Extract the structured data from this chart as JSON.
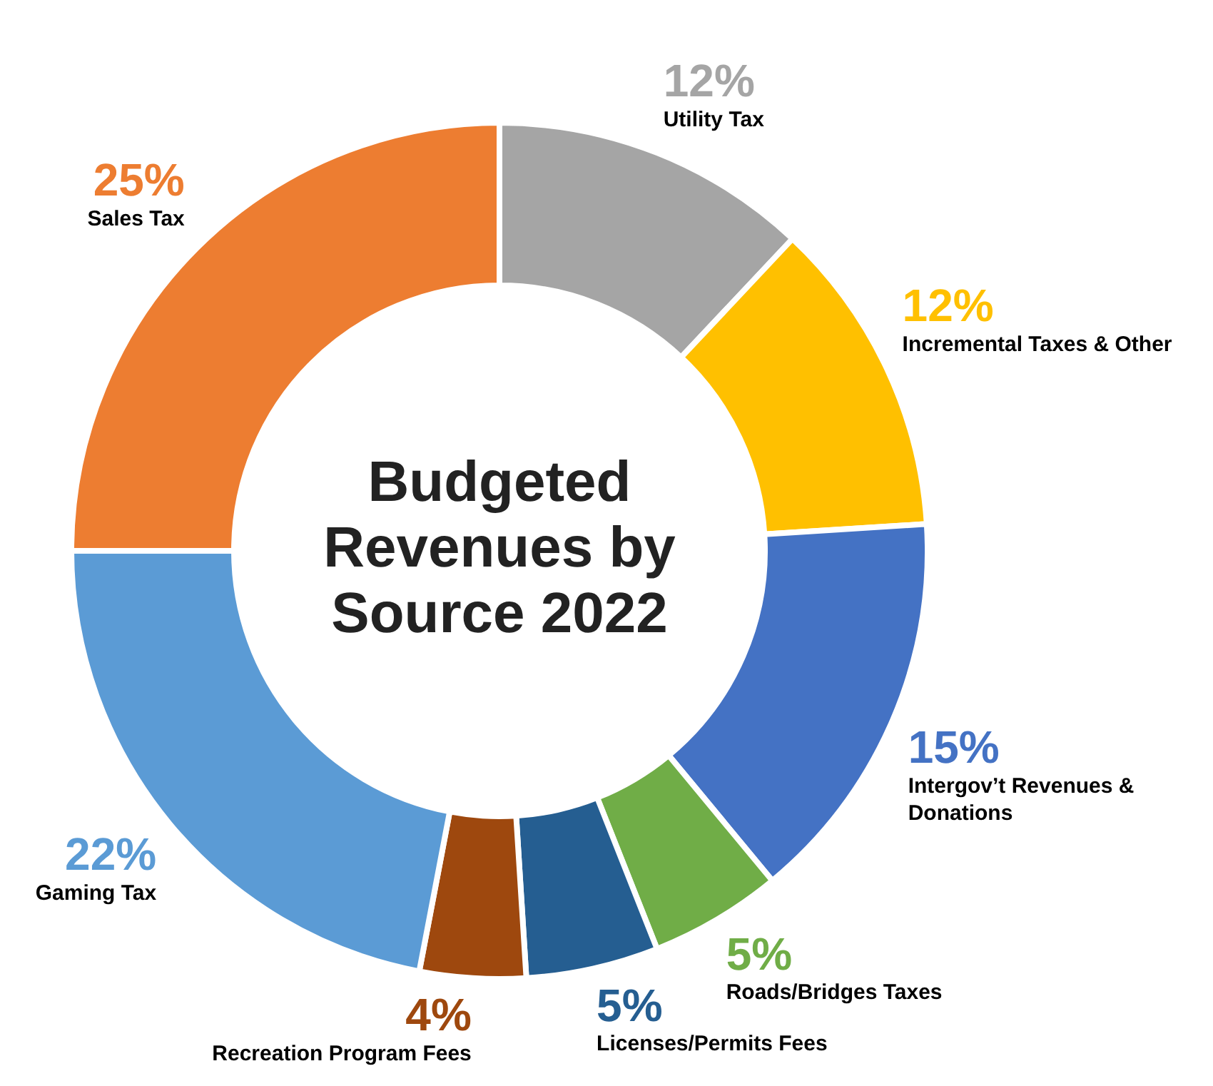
{
  "chart_data": {
    "type": "donut",
    "title": "Budgeted Revenues by Source 2022",
    "categories": [
      "Utility Tax",
      "Incremental Taxes & Other",
      "Intergov’t Revenues & Donations",
      "Roads/Bridges Taxes",
      "Licenses/Permits Fees",
      "Recreation Program Fees",
      "Gaming Tax",
      "Sales Tax"
    ],
    "values": [
      12,
      12,
      15,
      5,
      5,
      4,
      22,
      25
    ],
    "value_labels": [
      "12%",
      "12%",
      "15%",
      "5%",
      "5%",
      "4%",
      "22%",
      "25%"
    ],
    "colors": [
      "#a5a5a5",
      "#ffc000",
      "#4472c4",
      "#70ad47",
      "#255e91",
      "#9e480e",
      "#5b9bd5",
      "#ed7d31"
    ],
    "legend": false
  }
}
